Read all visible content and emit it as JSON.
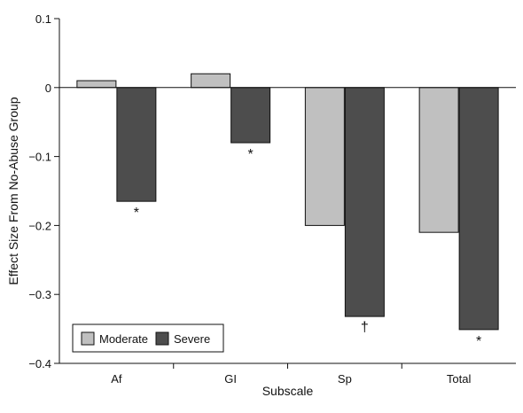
{
  "chart_data": {
    "type": "bar",
    "xlabel": "Subscale",
    "ylabel": "Effect Size From No-Abuse Group",
    "ylim": [
      -0.4,
      0.1
    ],
    "yticks": [
      0.1,
      0,
      -0.1,
      -0.2,
      -0.3,
      -0.4
    ],
    "ytick_labels": [
      "0.1",
      "0",
      "−0.1",
      "−0.2",
      "−0.3",
      "−0.4"
    ],
    "categories": [
      "Af",
      "GI",
      "Sp",
      "Total"
    ],
    "series": [
      {
        "name": "Moderate",
        "color": "#c0c0c0",
        "values": [
          0.01,
          0.02,
          -0.2,
          -0.21
        ]
      },
      {
        "name": "Severe",
        "color": "#4d4d4d",
        "values": [
          -0.165,
          -0.08,
          -0.332,
          -0.351
        ]
      }
    ],
    "annotations": [
      {
        "category": "Af",
        "series": "Severe",
        "text": "*"
      },
      {
        "category": "GI",
        "series": "Severe",
        "text": "*"
      },
      {
        "category": "Sp",
        "series": "Severe",
        "text": "†"
      },
      {
        "category": "Total",
        "series": "Severe",
        "text": "*"
      }
    ],
    "legend": {
      "placement": "bottom-left",
      "entries": [
        "Moderate",
        "Severe"
      ]
    },
    "grid": false
  }
}
